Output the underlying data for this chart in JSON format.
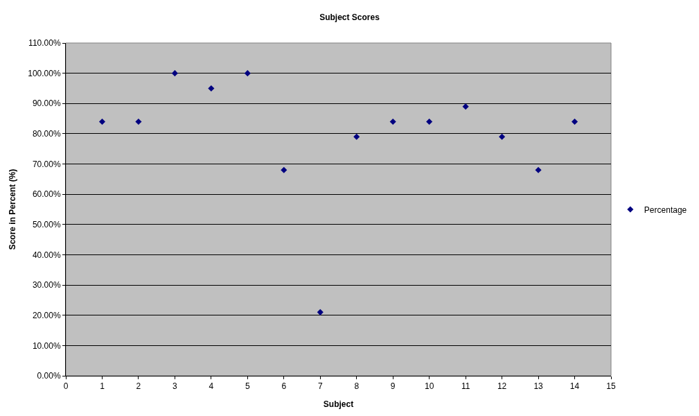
{
  "chart_data": {
    "type": "scatter",
    "title": "Subject Scores",
    "xlabel": "Subject",
    "ylabel": "Score in Percent (%)",
    "x": [
      1,
      2,
      3,
      4,
      5,
      6,
      7,
      8,
      9,
      10,
      11,
      12,
      13,
      14
    ],
    "series": [
      {
        "name": "Percentage",
        "color": "#000080",
        "values": [
          84,
          84,
          100,
          95,
          100,
          68,
          21,
          79,
          84,
          84,
          89,
          79,
          68,
          84
        ]
      }
    ],
    "xlim": [
      0,
      15
    ],
    "xticks": [
      0,
      1,
      2,
      3,
      4,
      5,
      6,
      7,
      8,
      9,
      10,
      11,
      12,
      13,
      14,
      15
    ],
    "ylim": [
      0,
      110
    ],
    "yticks": [
      {
        "value": 0,
        "label": "0.00%"
      },
      {
        "value": 10,
        "label": "10.00%"
      },
      {
        "value": 20,
        "label": "20.00%"
      },
      {
        "value": 30,
        "label": "30.00%"
      },
      {
        "value": 40,
        "label": "40.00%"
      },
      {
        "value": 50,
        "label": "50.00%"
      },
      {
        "value": 60,
        "label": "60.00%"
      },
      {
        "value": 70,
        "label": "70.00%"
      },
      {
        "value": 80,
        "label": "80.00%"
      },
      {
        "value": 90,
        "label": "90.00%"
      },
      {
        "value": 100,
        "label": "100.00%"
      },
      {
        "value": 110,
        "label": "110.00%"
      }
    ],
    "grid": "y",
    "legend": "right",
    "marker": "diamond"
  }
}
